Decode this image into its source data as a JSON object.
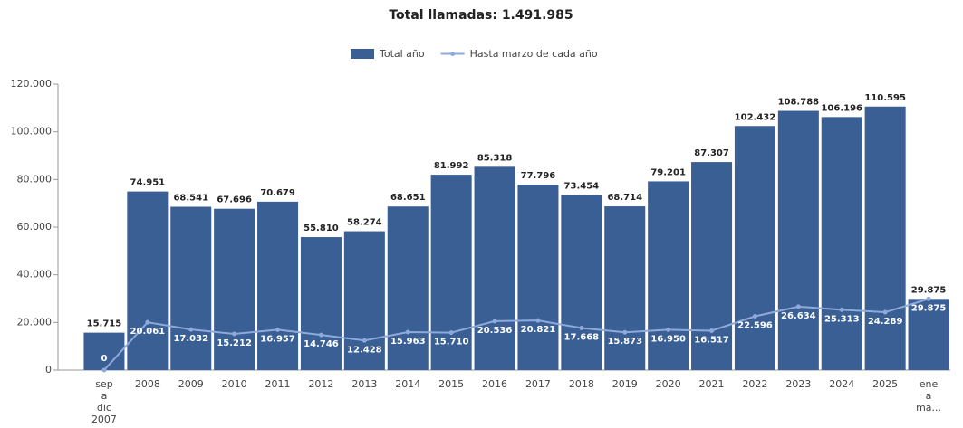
{
  "chart_data": {
    "type": "bar",
    "title": "Total llamadas: 1.491.985",
    "categories": [
      "sep a dic 2007",
      "2008",
      "2009",
      "2010",
      "2011",
      "2012",
      "2013",
      "2014",
      "2015",
      "2016",
      "2017",
      "2018",
      "2019",
      "2020",
      "2021",
      "2022",
      "2023",
      "2024",
      "2025",
      "ene a ma..."
    ],
    "series": [
      {
        "name": "Total año",
        "type": "bar",
        "color": "#3a5f94",
        "values": [
          15715,
          74951,
          68541,
          67696,
          70679,
          55810,
          58274,
          68651,
          81992,
          85318,
          77796,
          73454,
          68714,
          79201,
          87307,
          102432,
          108788,
          106196,
          110595,
          29875
        ],
        "value_labels": [
          "15.715",
          "74.951",
          "68.541",
          "67.696",
          "70.679",
          "55.810",
          "58.274",
          "68.651",
          "81.992",
          "85.318",
          "77.796",
          "73.454",
          "68.714",
          "79.201",
          "87.307",
          "102.432",
          "108.788",
          "106.196",
          "110.595",
          "29.875"
        ]
      },
      {
        "name": "Hasta marzo de cada año",
        "type": "line",
        "color": "#8eaadb",
        "values": [
          0,
          20061,
          17032,
          15212,
          16957,
          14746,
          12428,
          15963,
          15710,
          20536,
          20821,
          17668,
          15873,
          16950,
          16517,
          22596,
          26634,
          25313,
          24289,
          29875
        ],
        "value_labels": [
          "0",
          "20.061",
          "17.032",
          "15.212",
          "16.957",
          "14.746",
          "12.428",
          "15.963",
          "15.710",
          "20.536",
          "20.821",
          "17.668",
          "15.873",
          "16.950",
          "16.517",
          "22.596",
          "26.634",
          "25.313",
          "24.289",
          "29.875"
        ]
      }
    ],
    "ylim": [
      0,
      120000
    ],
    "yticks": [
      0,
      {
        "value": 20000,
        "label": "20.000"
      },
      {
        "value": 40000,
        "label": "40.000"
      },
      {
        "value": 60000,
        "label": "60.000"
      },
      {
        "value": 80000,
        "label": "80.000"
      },
      {
        "value": 100000,
        "label": "100.000"
      },
      {
        "value": 120000,
        "label": "120.000"
      }
    ],
    "grid": false,
    "legend": "top"
  }
}
